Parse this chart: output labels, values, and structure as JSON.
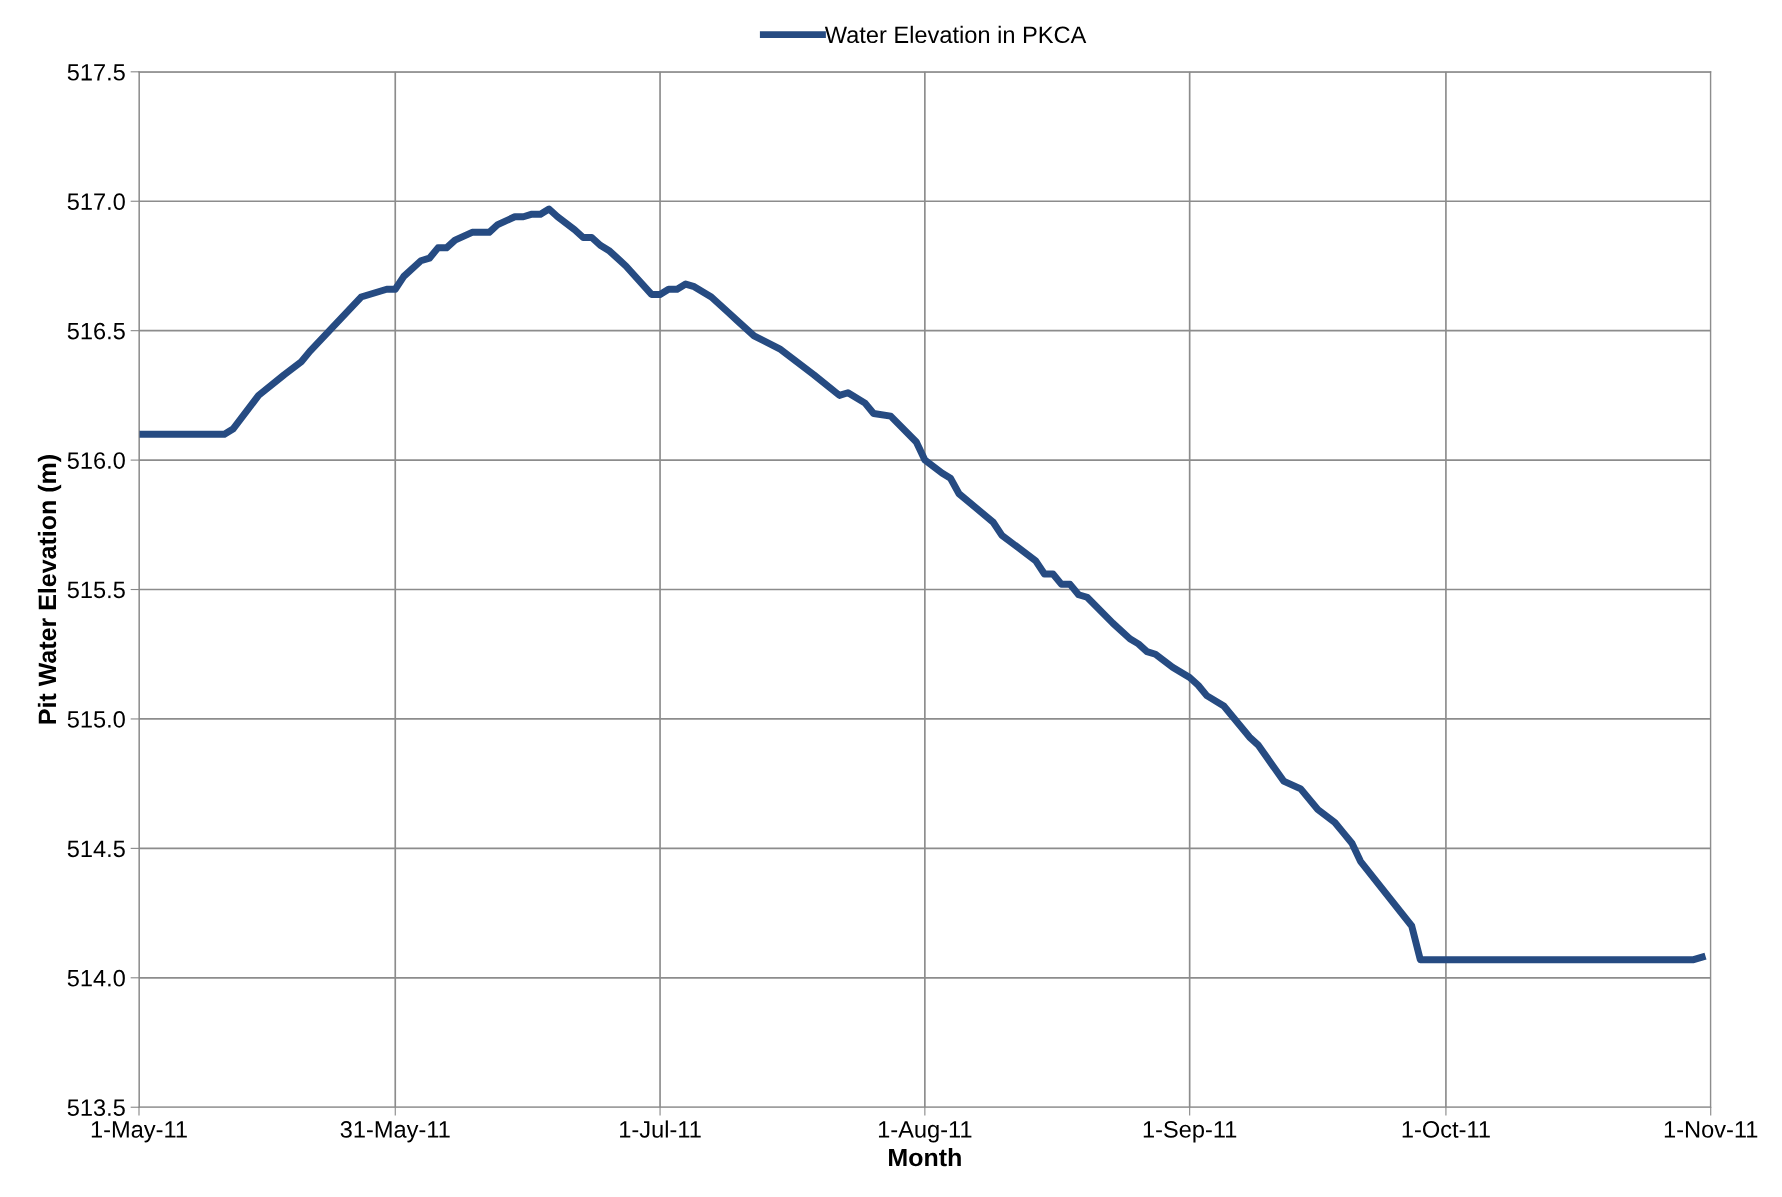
{
  "chart_data": {
    "type": "line",
    "xlabel": "Month",
    "ylabel": "Pit Water Elevation (m)",
    "x": [
      "2011-05-01",
      "2011-05-11",
      "2011-05-12",
      "2011-05-15",
      "2011-05-18",
      "2011-05-20",
      "2011-05-21",
      "2011-05-27",
      "2011-05-30",
      "2011-05-31",
      "2011-06-01",
      "2011-06-03",
      "2011-06-04",
      "2011-06-05",
      "2011-06-06",
      "2011-06-07",
      "2011-06-09",
      "2011-06-11",
      "2011-06-12",
      "2011-06-14",
      "2011-06-15",
      "2011-06-16",
      "2011-06-17",
      "2011-06-18",
      "2011-06-19",
      "2011-06-21",
      "2011-06-22",
      "2011-06-23",
      "2011-06-24",
      "2011-06-25",
      "2011-06-26",
      "2011-06-27",
      "2011-06-30",
      "2011-07-01",
      "2011-07-02",
      "2011-07-03",
      "2011-07-04",
      "2011-07-05",
      "2011-07-07",
      "2011-07-09",
      "2011-07-10",
      "2011-07-12",
      "2011-07-15",
      "2011-07-19",
      "2011-07-22",
      "2011-07-23",
      "2011-07-25",
      "2011-07-26",
      "2011-07-28",
      "2011-07-31",
      "2011-08-01",
      "2011-08-03",
      "2011-08-04",
      "2011-08-05",
      "2011-08-09",
      "2011-08-10",
      "2011-08-12",
      "2011-08-14",
      "2011-08-15",
      "2011-08-16",
      "2011-08-17",
      "2011-08-18",
      "2011-08-19",
      "2011-08-20",
      "2011-08-23",
      "2011-08-25",
      "2011-08-26",
      "2011-08-27",
      "2011-08-28",
      "2011-08-30",
      "2011-09-01",
      "2011-09-02",
      "2011-09-03",
      "2011-09-05",
      "2011-09-08",
      "2011-09-09",
      "2011-09-12",
      "2011-09-14",
      "2011-09-16",
      "2011-09-18",
      "2011-09-19",
      "2011-09-20",
      "2011-09-21",
      "2011-09-27",
      "2011-09-28",
      "2011-10-30",
      "2011-10-31"
    ],
    "series": [
      {
        "name": "Water Elevation in PKCA",
        "color": "#264b82",
        "values": [
          516.1,
          516.1,
          516.12,
          516.25,
          516.33,
          516.38,
          516.42,
          516.63,
          516.66,
          516.66,
          516.71,
          516.77,
          516.78,
          516.82,
          516.82,
          516.85,
          516.88,
          516.88,
          516.91,
          516.94,
          516.94,
          516.95,
          516.95,
          516.97,
          516.94,
          516.89,
          516.86,
          516.86,
          516.83,
          516.81,
          516.78,
          516.75,
          516.64,
          516.64,
          516.66,
          516.66,
          516.68,
          516.67,
          516.63,
          516.57,
          516.54,
          516.48,
          516.43,
          516.33,
          516.25,
          516.26,
          516.22,
          516.18,
          516.17,
          516.07,
          516.0,
          515.95,
          515.93,
          515.87,
          515.76,
          515.71,
          515.66,
          515.61,
          515.56,
          515.56,
          515.52,
          515.52,
          515.48,
          515.47,
          515.37,
          515.31,
          515.29,
          515.26,
          515.25,
          515.2,
          515.16,
          515.13,
          515.09,
          515.05,
          514.93,
          514.9,
          514.76,
          514.73,
          514.65,
          514.6,
          514.56,
          514.52,
          514.45,
          514.2,
          514.07,
          514.07,
          514.08
        ]
      }
    ],
    "xlim": [
      "2011-05-01",
      "2011-11-01"
    ],
    "xticks": [
      {
        "value": "2011-05-01",
        "label": "1-May-11"
      },
      {
        "value": "2011-05-31",
        "label": "31-May-11"
      },
      {
        "value": "2011-07-01",
        "label": "1-Jul-11"
      },
      {
        "value": "2011-08-01",
        "label": "1-Aug-11"
      },
      {
        "value": "2011-09-01",
        "label": "1-Sep-11"
      },
      {
        "value": "2011-10-01",
        "label": "1-Oct-11"
      },
      {
        "value": "2011-11-01",
        "label": "1-Nov-11"
      }
    ],
    "ylim": [
      513.5,
      517.5
    ],
    "yticks": [
      {
        "value": 513.5,
        "label": "513.5"
      },
      {
        "value": 514.0,
        "label": "514.0"
      },
      {
        "value": 514.5,
        "label": "514.5"
      },
      {
        "value": 515.0,
        "label": "515.0"
      },
      {
        "value": 515.5,
        "label": "515.5"
      },
      {
        "value": 516.0,
        "label": "516.0"
      },
      {
        "value": 516.5,
        "label": "516.5"
      },
      {
        "value": 517.0,
        "label": "517.0"
      },
      {
        "value": 517.5,
        "label": "517.5"
      }
    ],
    "grid": true,
    "legend": "top",
    "marker": "none",
    "line_style": "solid"
  }
}
